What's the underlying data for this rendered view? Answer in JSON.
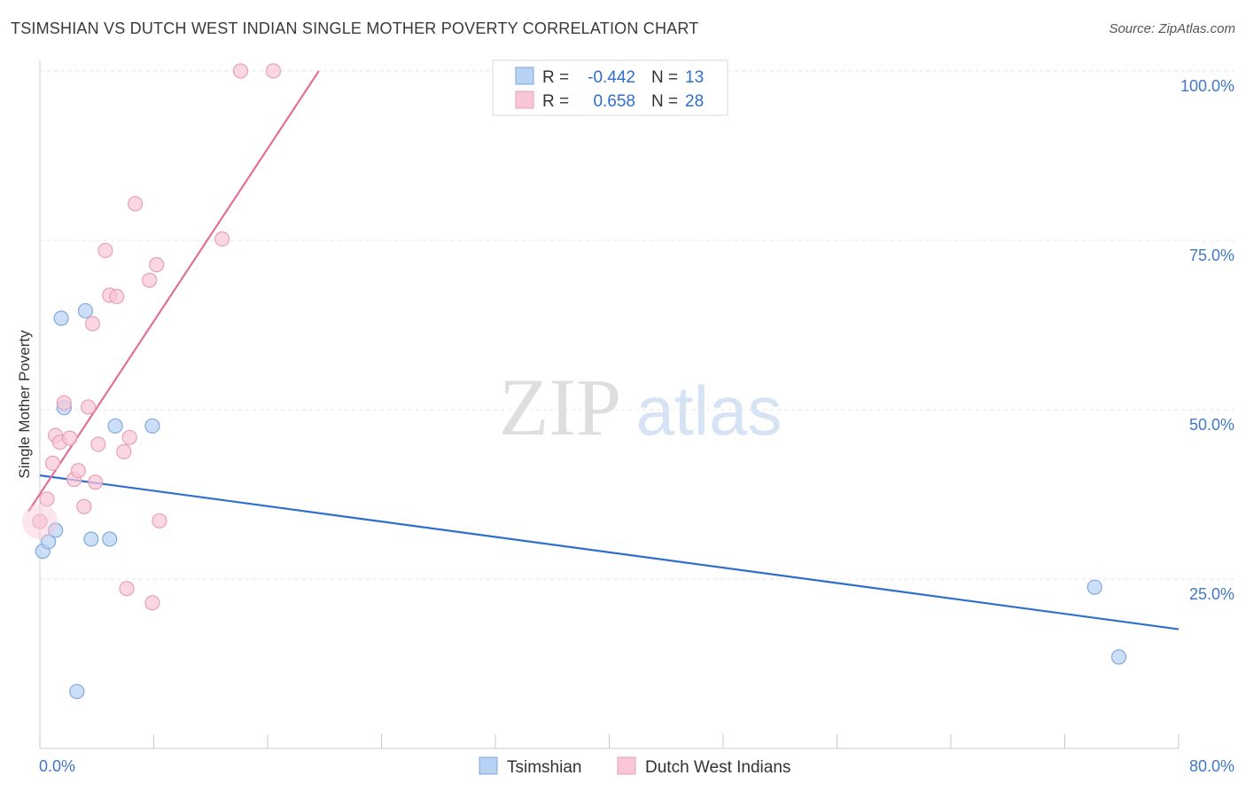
{
  "title": "TSIMSHIAN VS DUTCH WEST INDIAN SINGLE MOTHER POVERTY CORRELATION CHART",
  "source": "Source: ZipAtlas.com",
  "watermark": {
    "zip": "ZIP",
    "atlas": "atlas"
  },
  "colors": {
    "blue_fill": "#b8d2f4",
    "blue_stroke": "#7fa8e0",
    "blue_line": "#2f6fcc",
    "pink_fill": "#f8c6d6",
    "pink_stroke": "#e8a0b8",
    "pink_line": "#e0709a",
    "grid": "#e4e4e4",
    "tick_text": "#3f78c8"
  },
  "chart_data": {
    "type": "scatter",
    "title": "TSIMSHIAN VS DUTCH WEST INDIAN SINGLE MOTHER POVERTY CORRELATION CHART",
    "xlabel": "",
    "ylabel": "Single Mother Poverty",
    "xlim": [
      0,
      80
    ],
    "ylim": [
      0,
      100
    ],
    "x_tick_labels": [
      "0.0%",
      "80.0%"
    ],
    "y_ticks": [
      25,
      50,
      75,
      100
    ],
    "y_tick_labels": [
      "25.0%",
      "50.0%",
      "75.0%",
      "100.0%"
    ],
    "legend": [
      {
        "r_label": "R =",
        "r_value": "-0.442",
        "n_label": "N =",
        "n_value": "13"
      },
      {
        "r_label": "R =",
        "r_value": "0.658",
        "n_label": "N =",
        "n_value": "28"
      }
    ],
    "series": [
      {
        "name": "Tsimshian",
        "color": "blue",
        "points": [
          [
            0.2,
            29.1
          ],
          [
            0.6,
            30.5
          ],
          [
            1.1,
            32.2
          ],
          [
            1.5,
            63.5
          ],
          [
            1.7,
            50.3
          ],
          [
            2.6,
            8.4
          ],
          [
            3.2,
            64.6
          ],
          [
            3.6,
            30.9
          ],
          [
            4.9,
            30.9
          ],
          [
            5.3,
            47.6
          ],
          [
            7.9,
            47.6
          ],
          [
            74.1,
            23.8
          ],
          [
            75.8,
            13.5
          ]
        ],
        "trend": {
          "x": [
            0,
            80
          ],
          "y": [
            40.3,
            17.6
          ]
        }
      },
      {
        "name": "Dutch West Indians",
        "color": "pink",
        "points": [
          [
            0.0,
            33.5
          ],
          [
            0.5,
            36.8
          ],
          [
            0.9,
            42.1
          ],
          [
            1.1,
            46.2
          ],
          [
            1.4,
            45.2
          ],
          [
            1.7,
            51.0
          ],
          [
            2.1,
            45.8
          ],
          [
            2.4,
            39.7
          ],
          [
            2.7,
            41.0
          ],
          [
            3.1,
            35.7
          ],
          [
            3.4,
            50.4
          ],
          [
            3.7,
            62.7
          ],
          [
            3.9,
            39.3
          ],
          [
            4.1,
            44.9
          ],
          [
            4.6,
            73.5
          ],
          [
            4.9,
            66.9
          ],
          [
            5.4,
            66.7
          ],
          [
            5.9,
            43.8
          ],
          [
            6.1,
            23.6
          ],
          [
            6.3,
            45.9
          ],
          [
            6.7,
            80.4
          ],
          [
            7.7,
            69.1
          ],
          [
            7.9,
            21.5
          ],
          [
            8.2,
            71.4
          ],
          [
            8.4,
            33.6
          ],
          [
            12.8,
            75.2
          ],
          [
            14.1,
            100.0
          ],
          [
            16.4,
            100.0
          ]
        ],
        "trend": {
          "x": [
            -0.8,
            19.6
          ],
          "y": [
            35.0,
            100.0
          ]
        }
      }
    ]
  }
}
